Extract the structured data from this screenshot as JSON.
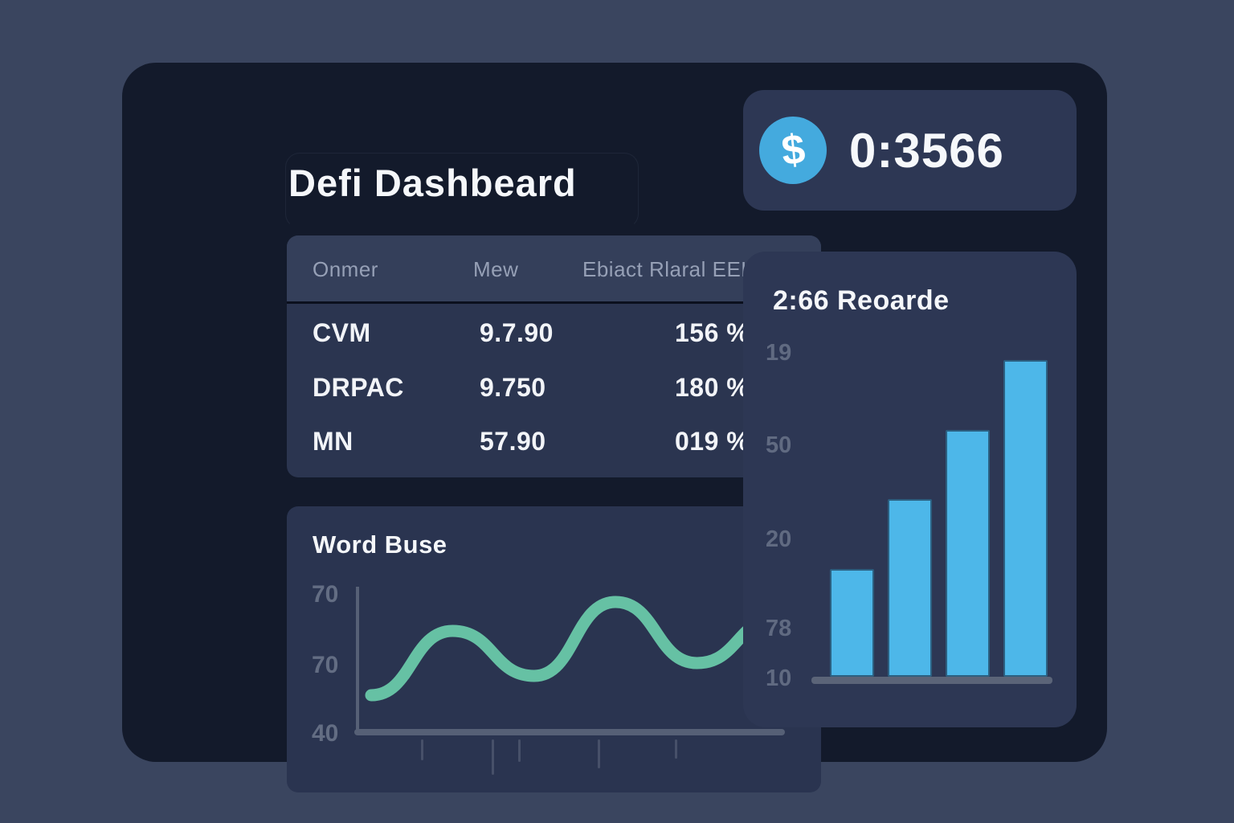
{
  "app": {
    "title": "Defi Dashbeard"
  },
  "balance_card": {
    "icon": "dollar-icon",
    "icon_glyph": "$",
    "icon_bg": "#44aade",
    "value": "0:3566"
  },
  "market_table": {
    "headers": [
      "Onmer",
      "Mew",
      "Ebiact Rlaral EEKI"
    ],
    "rows": [
      {
        "name": "CVM",
        "value": "9.7.90",
        "percent": "156 %"
      },
      {
        "name": "DRPAC",
        "value": "9.750",
        "percent": "180 %"
      },
      {
        "name": "MN",
        "value": "57.90",
        "percent": "019 %"
      }
    ]
  },
  "line_chart_card": {
    "title": "Word Buse"
  },
  "rewards_card": {
    "title": "2:66 Reoarde"
  },
  "chart_data": [
    {
      "type": "line",
      "title": "Word Buse",
      "x": [
        0,
        1,
        2,
        3,
        4,
        5
      ],
      "values": [
        42,
        62,
        48,
        71,
        52,
        66
      ],
      "ylim": [
        30,
        75
      ],
      "y_tick_labels": [
        "70",
        "70",
        "40"
      ],
      "xlabel": "",
      "ylabel": "",
      "grid": false,
      "legend": "none",
      "line_color": "#66c1a4"
    },
    {
      "type": "bar",
      "title": "2:66 Reoarde",
      "categories": [
        "",
        "",
        "",
        ""
      ],
      "values": [
        34,
        56,
        78,
        100
      ],
      "ylim": [
        0,
        100
      ],
      "y_tick_labels": [
        "19",
        "50",
        "20",
        "78",
        "10"
      ],
      "xlabel": "",
      "ylabel": "",
      "grid": false,
      "legend": "none",
      "bar_color": "#4db7e9"
    }
  ],
  "colors": {
    "page_bg": "#3a455f",
    "card_bg": "#131a2b",
    "panel_bg": "#2b3550",
    "accent_blue": "#4db7e9",
    "accent_teal": "#66c1a4",
    "text_white": "#f5f7fa",
    "text_muted": "#96a0b6"
  }
}
